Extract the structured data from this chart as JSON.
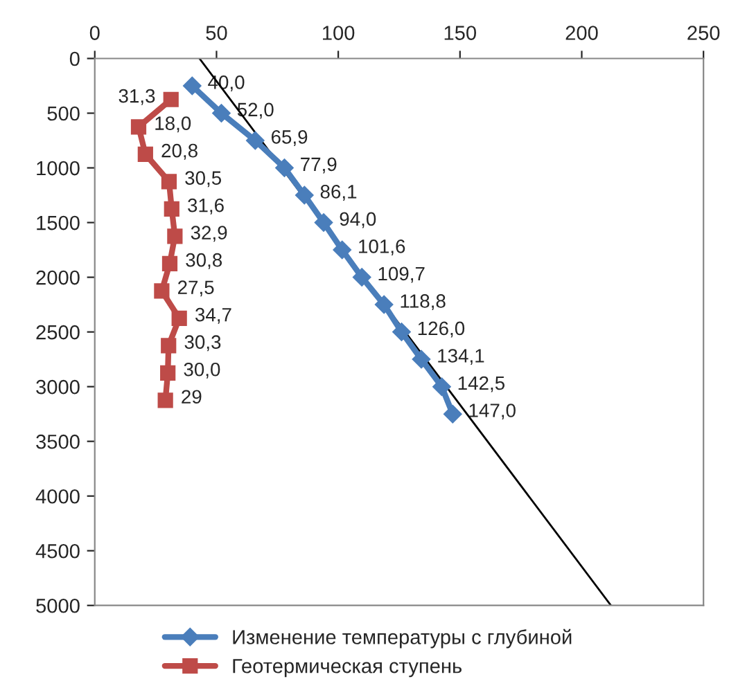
{
  "chart_data": {
    "type": "line",
    "orientation": "horizontal",
    "xlim": [
      0,
      250
    ],
    "xticks": [
      0,
      50,
      100,
      150,
      200,
      250
    ],
    "ylim": [
      5000,
      0
    ],
    "yticks": [
      0,
      500,
      1000,
      1500,
      2000,
      2500,
      3000,
      3500,
      4000,
      4500,
      5000
    ],
    "grid": false,
    "legend": "bottom",
    "series": [
      {
        "name": "Изменение температуры с глубиной",
        "color": "#4a7ebb",
        "marker": "diamond",
        "values": [
          40.0,
          52.0,
          65.9,
          77.9,
          86.1,
          94.0,
          101.6,
          109.7,
          118.8,
          126.0,
          134.1,
          142.5,
          147.0
        ],
        "x": [
          250,
          500,
          750,
          1000,
          1250,
          1500,
          1750,
          2000,
          2250,
          2500,
          2750,
          3000,
          3250
        ],
        "value_labels": [
          "40,0",
          "52,0",
          "65,9",
          "77,9",
          "86,1",
          "94,0",
          "101,6",
          "109,7",
          "118,8",
          "126,0",
          "134,1",
          "142,5",
          "147,0"
        ]
      },
      {
        "name": "Геотермическая ступень",
        "color": "#be4b48",
        "marker": "square",
        "values": [
          31.3,
          18.0,
          20.8,
          30.5,
          31.6,
          32.9,
          30.8,
          27.5,
          34.7,
          30.3,
          30.0,
          29
        ],
        "x": [
          375,
          625,
          875,
          1125,
          1375,
          1625,
          1875,
          2125,
          2375,
          2625,
          2875,
          3125
        ],
        "value_labels": [
          "31,3",
          "18,0",
          "20,8",
          "30,5",
          "31,6",
          "32,9",
          "30,8",
          "27,5",
          "34,7",
          "30,3",
          "30,0",
          "29"
        ]
      },
      {
        "type": "line",
        "color": "#000000",
        "marker": "none",
        "values": [
          43,
          212
        ],
        "x": [
          0,
          5000
        ]
      }
    ]
  }
}
